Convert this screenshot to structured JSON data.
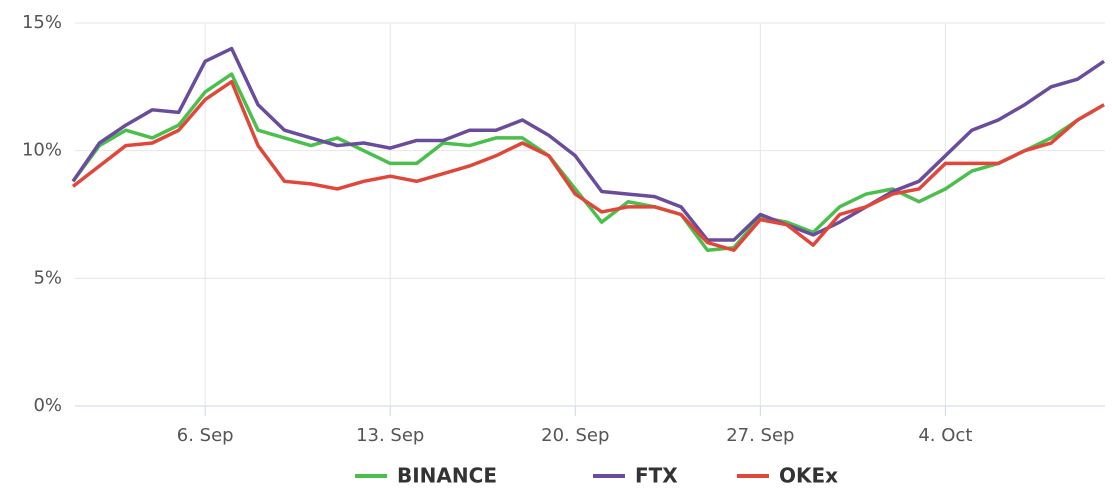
{
  "chart_data": {
    "type": "line",
    "categories": [
      null,
      null,
      null,
      null,
      null,
      "6. Sep",
      null,
      null,
      null,
      null,
      null,
      null,
      "13. Sep",
      null,
      null,
      null,
      null,
      null,
      null,
      "20. Sep",
      null,
      null,
      null,
      null,
      null,
      null,
      "27. Sep",
      null,
      null,
      null,
      null,
      null,
      null,
      "4. Oct",
      null,
      null,
      null,
      null,
      null,
      null
    ],
    "series": [
      {
        "name": "BINANCE",
        "color": "#4bbf4b",
        "values": [
          8.8,
          10.2,
          10.8,
          10.5,
          11,
          12.3,
          13,
          10.8,
          10.5,
          10.2,
          10.5,
          10,
          9.5,
          9.5,
          10.3,
          10.2,
          10.5,
          10.5,
          9.8,
          8.5,
          7.2,
          8,
          7.8,
          7.5,
          6.1,
          6.2,
          7.4,
          7.2,
          6.8,
          7.8,
          8.3,
          8.5,
          8,
          8.5,
          9.2,
          9.5,
          10,
          10.5,
          11.2,
          11.8
        ]
      },
      {
        "name": "FTX",
        "color": "#6a4c9c",
        "values": [
          8.8,
          10.3,
          11,
          11.6,
          11.5,
          13.5,
          14,
          11.8,
          10.8,
          10.5,
          10.2,
          10.3,
          10.1,
          10.4,
          10.4,
          10.8,
          10.8,
          11.2,
          10.6,
          9.8,
          8.4,
          8.3,
          8.2,
          7.8,
          6.5,
          6.5,
          7.5,
          7.1,
          6.7,
          7.2,
          7.8,
          8.4,
          8.8,
          9.8,
          10.8,
          11.2,
          11.8,
          12.5,
          12.8,
          13.5
        ]
      },
      {
        "name": "OKEx",
        "color": "#e0473a",
        "values": [
          8.6,
          9.4,
          10.2,
          10.3,
          10.8,
          12,
          12.7,
          10.2,
          8.8,
          8.7,
          8.5,
          8.8,
          9,
          8.8,
          9.1,
          9.4,
          9.8,
          10.3,
          9.8,
          8.3,
          7.6,
          7.8,
          7.8,
          7.5,
          6.4,
          6.1,
          7.3,
          7.1,
          6.3,
          7.5,
          7.8,
          8.3,
          8.5,
          9.5,
          9.5,
          9.5,
          10,
          10.3,
          11.2,
          11.8
        ]
      }
    ],
    "ylim": [
      0,
      15
    ],
    "yticks": [
      {
        "value": 0,
        "label": "0%"
      },
      {
        "value": 5,
        "label": "5%"
      },
      {
        "value": 10,
        "label": "10%"
      },
      {
        "value": 15,
        "label": "15%"
      }
    ],
    "grid": true
  }
}
